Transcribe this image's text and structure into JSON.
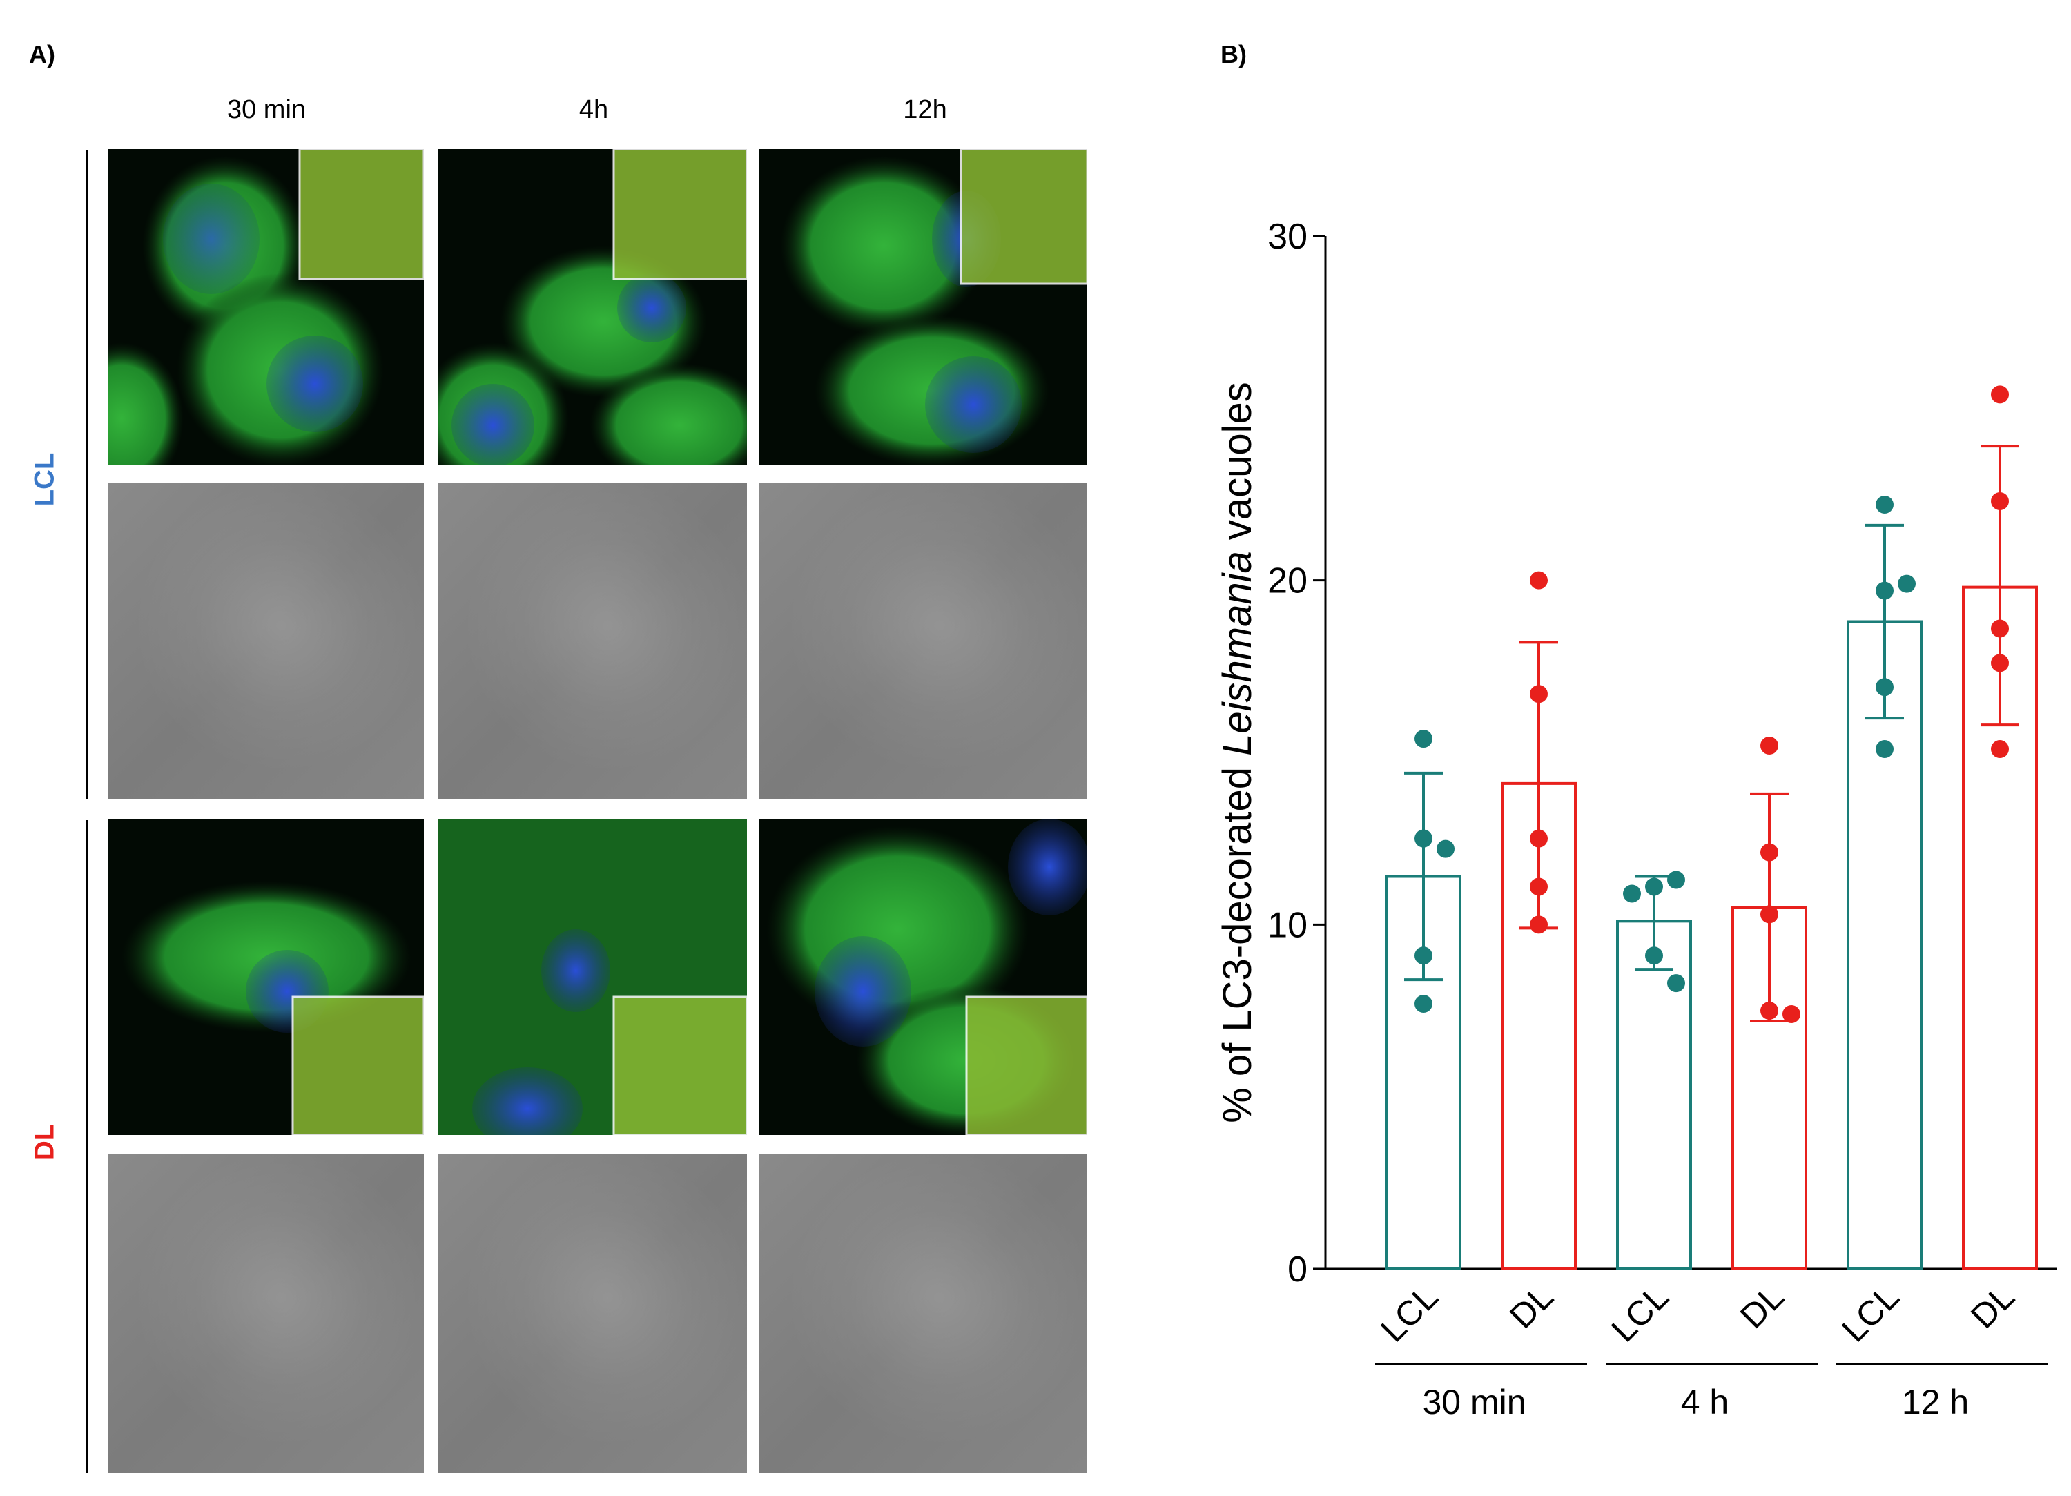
{
  "panel_a": {
    "label": "A)",
    "columns": [
      "30 min",
      "4h",
      "12h"
    ],
    "rows": [
      {
        "label": "LCL",
        "color": "#3a78c8"
      },
      {
        "label": "DL",
        "color": "#e8201c"
      }
    ]
  },
  "panel_b": {
    "label": "B)"
  },
  "chart_data": {
    "type": "bar",
    "ylabel_pre": "% of LC3-decorated ",
    "ylabel_italic": "Leishmania",
    "ylabel_post": " vacuoles",
    "ylim": [
      0,
      30
    ],
    "yticks": [
      "0",
      "10",
      "20",
      "30"
    ],
    "categories": [
      "LCL",
      "DL",
      "LCL",
      "DL",
      "LCL",
      "DL"
    ],
    "groups": [
      {
        "label": "30 min"
      },
      {
        "label": "4 h"
      },
      {
        "label": "12 h"
      }
    ],
    "bars": [
      {
        "category": "LCL",
        "group": "30 min",
        "mean": 11.4,
        "sd_low": 8.4,
        "sd_high": 14.4,
        "points": [
          15.4,
          12.5,
          12.2,
          9.1,
          7.7
        ],
        "color": "#1a7d78"
      },
      {
        "category": "DL",
        "group": "30 min",
        "mean": 14.1,
        "sd_low": 9.9,
        "sd_high": 18.2,
        "points": [
          20.0,
          16.7,
          12.5,
          11.1,
          10.0
        ],
        "color": "#e8201c"
      },
      {
        "category": "LCL",
        "group": "4 h",
        "mean": 10.1,
        "sd_low": 8.7,
        "sd_high": 11.4,
        "points": [
          11.1,
          11.3,
          10.9,
          9.1,
          8.3
        ],
        "color": "#1a7d78"
      },
      {
        "category": "DL",
        "group": "4 h",
        "mean": 10.5,
        "sd_low": 7.2,
        "sd_high": 13.8,
        "points": [
          15.2,
          12.1,
          10.3,
          7.5,
          7.4
        ],
        "color": "#e8201c"
      },
      {
        "category": "LCL",
        "group": "12 h",
        "mean": 18.8,
        "sd_low": 16.0,
        "sd_high": 21.6,
        "points": [
          22.2,
          19.7,
          19.9,
          16.9,
          15.1
        ],
        "color": "#1a7d78"
      },
      {
        "category": "DL",
        "group": "12 h",
        "mean": 19.8,
        "sd_low": 15.8,
        "sd_high": 23.9,
        "points": [
          25.4,
          22.3,
          18.6,
          17.6,
          15.1
        ],
        "color": "#e8201c"
      }
    ]
  }
}
